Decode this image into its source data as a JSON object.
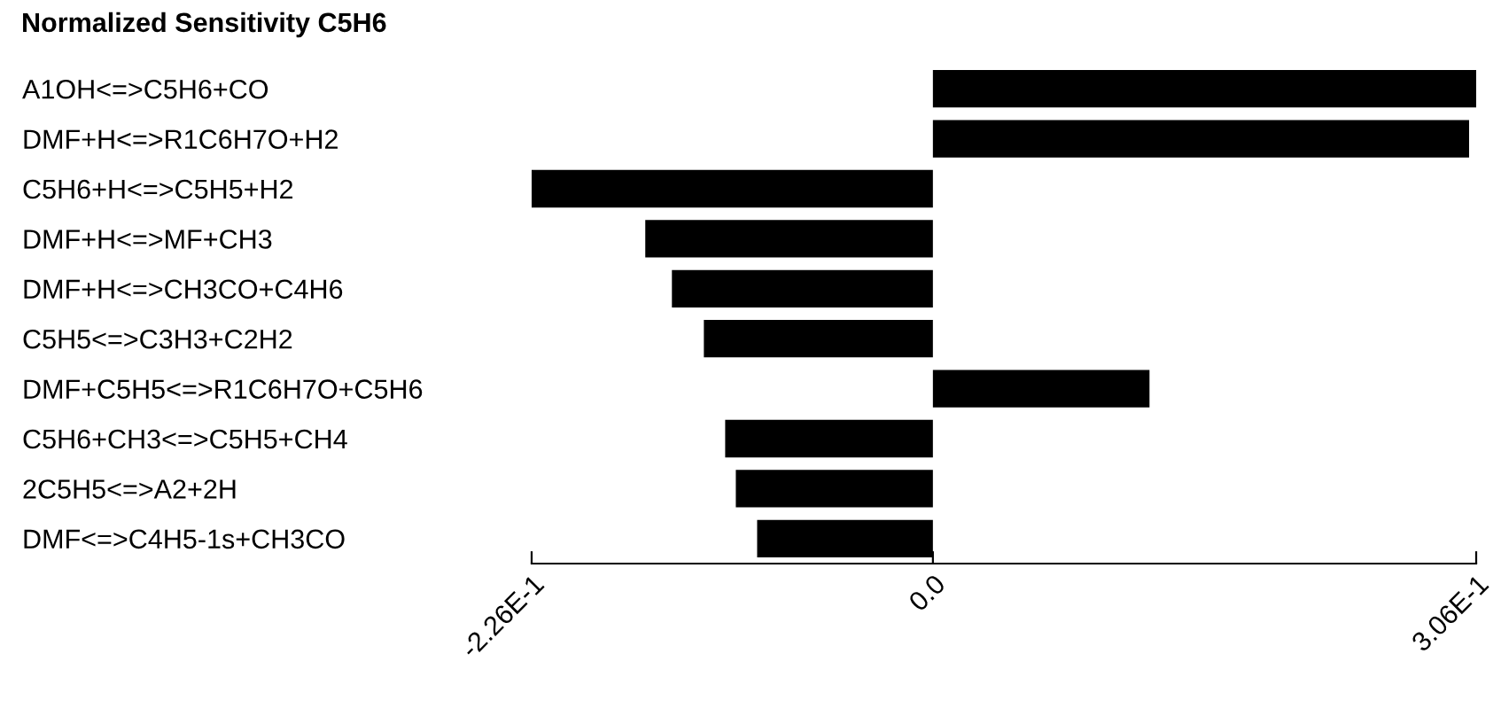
{
  "chart_data": {
    "type": "bar",
    "orientation": "horizontal",
    "title": "Normalized Sensitivity C5H6",
    "categories": [
      "A1OH<=>C5H6+CO",
      "DMF+H<=>R1C6H7O+H2",
      "C5H6+H<=>C5H5+H2",
      "DMF+H<=>MF+CH3",
      "DMF+H<=>CH3CO+C4H6",
      "C5H5<=>C3H3+C2H2",
      "DMF+C5H5<=>R1C6H7O+C5H6",
      "C5H6+CH3<=>C5H5+CH4",
      "2C5H5<=>A2+2H",
      "DMF<=>C4H5-1s+CH3CO"
    ],
    "values": [
      0.306,
      0.302,
      -0.226,
      -0.162,
      -0.147,
      -0.129,
      0.122,
      -0.117,
      -0.111,
      -0.099
    ],
    "color": "#000000",
    "xlim": [
      -0.226,
      0.306
    ],
    "xticks": [
      {
        "value": -0.226,
        "label": "-2.26E-1"
      },
      {
        "value": 0,
        "label": "0.0"
      },
      {
        "value": 0.306,
        "label": "3.06E-1"
      }
    ],
    "grid": false
  }
}
